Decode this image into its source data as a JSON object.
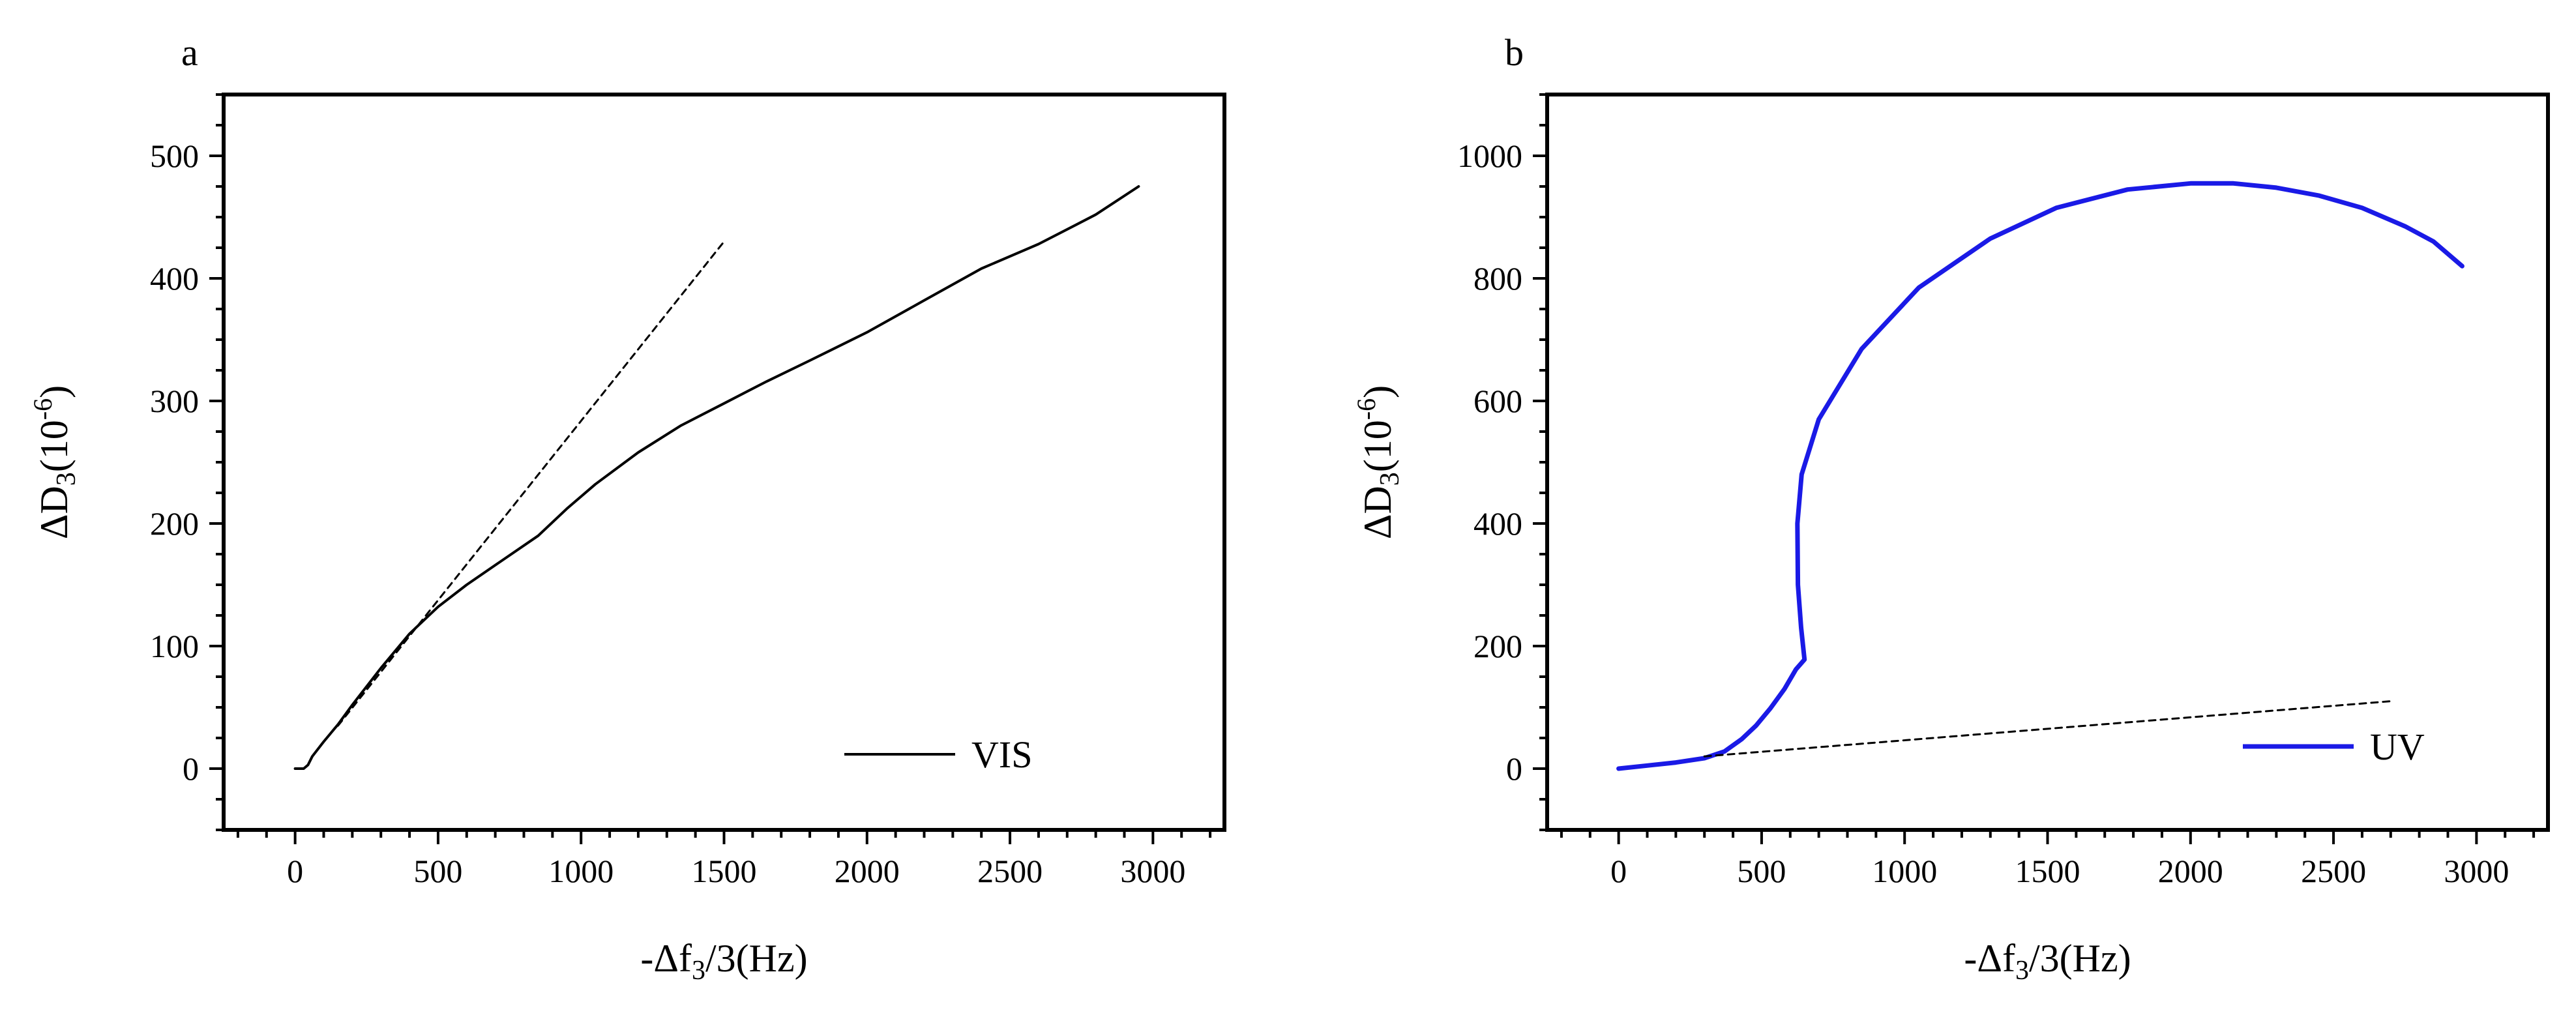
{
  "chart_data": [
    {
      "panel_label": "a",
      "type": "line",
      "xlabel": {
        "pre": "-Δf",
        "sub": "3",
        "post": "/3(Hz)"
      },
      "ylabel": {
        "pre": "ΔD",
        "sub": "3",
        "mid": "(10",
        "sup": "-6",
        "post": ")"
      },
      "xlim": [
        -250,
        3250
      ],
      "ylim": [
        -50,
        550
      ],
      "xticks": [
        0,
        500,
        1000,
        1500,
        2000,
        2500,
        3000
      ],
      "yticks": [
        0,
        100,
        200,
        300,
        400,
        500
      ],
      "x_minor_step": 100,
      "y_minor_step": 25,
      "legend_position": "bottom-right",
      "series": [
        {
          "name": "VIS",
          "style": "solid",
          "color": "#000000",
          "in_legend": true,
          "points": [
            [
              0,
              0
            ],
            [
              30,
              0
            ],
            [
              45,
              3
            ],
            [
              60,
              10
            ],
            [
              100,
              22
            ],
            [
              150,
              36
            ],
            [
              200,
              52
            ],
            [
              300,
              82
            ],
            [
              400,
              110
            ],
            [
              500,
              132
            ],
            [
              600,
              150
            ],
            [
              700,
              166
            ],
            [
              850,
              190
            ],
            [
              950,
              212
            ],
            [
              1050,
              232
            ],
            [
              1200,
              258
            ],
            [
              1350,
              280
            ],
            [
              1500,
              298
            ],
            [
              1650,
              316
            ],
            [
              1800,
              333
            ],
            [
              2000,
              356
            ],
            [
              2200,
              382
            ],
            [
              2400,
              408
            ],
            [
              2600,
              428
            ],
            [
              2800,
              452
            ],
            [
              2950,
              475
            ]
          ]
        },
        {
          "name": "tangent",
          "style": "dashed",
          "color": "#000000",
          "in_legend": false,
          "points": [
            [
              150,
              35
            ],
            [
              1500,
              430
            ]
          ]
        }
      ]
    },
    {
      "panel_label": "b",
      "type": "line",
      "xlabel": {
        "pre": "-Δf",
        "sub": "3",
        "post": "/3(Hz)"
      },
      "ylabel": {
        "pre": "ΔD",
        "sub": "3",
        "mid": "(10",
        "sup": "-6",
        "post": ")"
      },
      "xlim": [
        -250,
        3250
      ],
      "ylim": [
        -100,
        1100
      ],
      "xticks": [
        0,
        500,
        1000,
        1500,
        2000,
        2500,
        3000
      ],
      "yticks": [
        0,
        200,
        400,
        600,
        800,
        1000
      ],
      "x_minor_step": 100,
      "y_minor_step": 50,
      "legend_position": "bottom-right",
      "series": [
        {
          "name": "UV",
          "style": "solid",
          "color": "#1a1ae6",
          "in_legend": true,
          "points": [
            [
              0,
              0
            ],
            [
              100,
              5
            ],
            [
              200,
              10
            ],
            [
              300,
              17
            ],
            [
              370,
              28
            ],
            [
              430,
              48
            ],
            [
              480,
              70
            ],
            [
              530,
              98
            ],
            [
              580,
              130
            ],
            [
              620,
              162
            ],
            [
              650,
              178
            ],
            [
              638,
              230
            ],
            [
              627,
              300
            ],
            [
              625,
              400
            ],
            [
              640,
              480
            ],
            [
              700,
              570
            ],
            [
              850,
              685
            ],
            [
              1050,
              785
            ],
            [
              1300,
              865
            ],
            [
              1530,
              915
            ],
            [
              1780,
              945
            ],
            [
              2000,
              955
            ],
            [
              2150,
              955
            ],
            [
              2300,
              948
            ],
            [
              2450,
              935
            ],
            [
              2600,
              915
            ],
            [
              2750,
              885
            ],
            [
              2850,
              860
            ],
            [
              2950,
              820
            ]
          ]
        },
        {
          "name": "baseline",
          "style": "dashed",
          "color": "#000000",
          "in_legend": false,
          "points": [
            [
              300,
              20
            ],
            [
              2700,
              110
            ]
          ]
        }
      ]
    }
  ]
}
